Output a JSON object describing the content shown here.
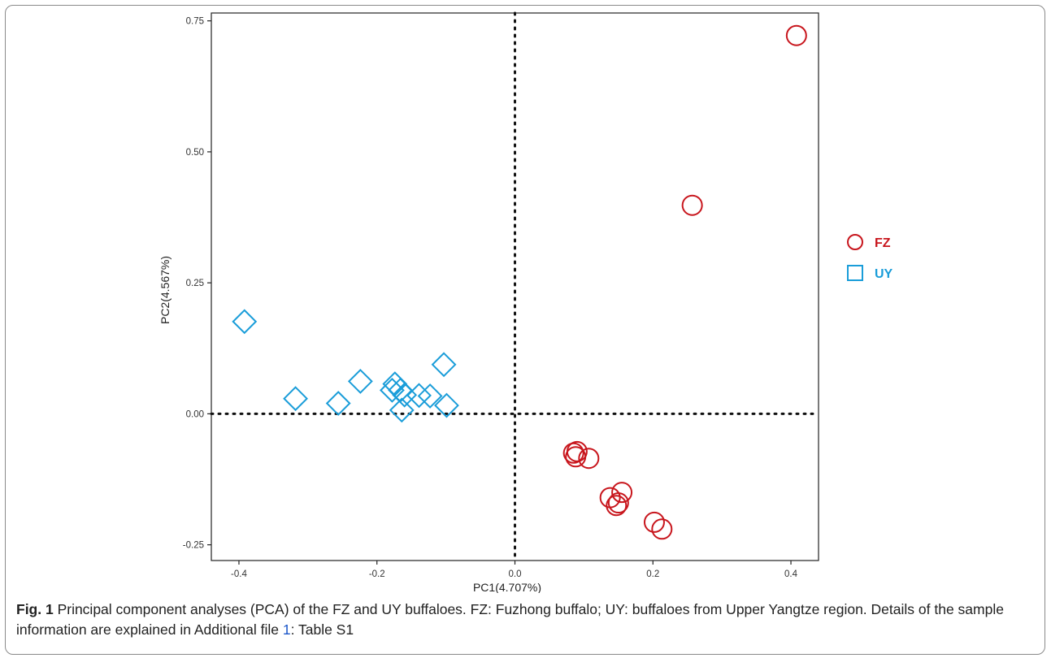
{
  "chart_data": {
    "type": "scatter",
    "xlabel": "PC1(4.707%)",
    "ylabel": "PC2(4.567%)",
    "xlim": [
      -0.44,
      0.44
    ],
    "ylim": [
      -0.28,
      0.765
    ],
    "x_ticks": [
      "-0.4",
      "-0.2",
      "0.0",
      "0.2",
      "0.4"
    ],
    "y_ticks": [
      "-0.25",
      "0.00",
      "0.25",
      "0.50",
      "0.75"
    ],
    "x_tick_values": [
      -0.4,
      -0.2,
      0.0,
      0.2,
      0.4
    ],
    "y_tick_values": [
      -0.25,
      0.0,
      0.25,
      0.5,
      0.75
    ],
    "reference_lines": {
      "x": 0.0,
      "y": 0.0,
      "style": "dotted"
    },
    "grid": false,
    "legend_position": "right",
    "series": [
      {
        "name": "FZ",
        "marker": "circle",
        "color": "#c8161d",
        "points": [
          [
            0.408,
            0.722
          ],
          [
            0.257,
            0.398
          ],
          [
            0.085,
            -0.075
          ],
          [
            0.09,
            -0.072
          ],
          [
            0.088,
            -0.082
          ],
          [
            0.107,
            -0.085
          ],
          [
            0.138,
            -0.16
          ],
          [
            0.155,
            -0.15
          ],
          [
            0.15,
            -0.17
          ],
          [
            0.147,
            -0.175
          ],
          [
            0.202,
            -0.207
          ],
          [
            0.213,
            -0.22
          ]
        ]
      },
      {
        "name": "UY",
        "marker": "diamond",
        "color": "#1a9dd9",
        "legend_marker": "square",
        "points": [
          [
            -0.392,
            0.176
          ],
          [
            -0.318,
            0.029
          ],
          [
            -0.256,
            0.02
          ],
          [
            -0.224,
            0.062
          ],
          [
            -0.178,
            0.045
          ],
          [
            -0.174,
            0.057
          ],
          [
            -0.166,
            0.045
          ],
          [
            -0.16,
            0.036
          ],
          [
            -0.164,
            0.007
          ],
          [
            -0.139,
            0.035
          ],
          [
            -0.123,
            0.034
          ],
          [
            -0.103,
            0.094
          ],
          [
            -0.099,
            0.016
          ]
        ]
      }
    ]
  },
  "caption": {
    "label": "Fig. 1",
    "text_before_link": " Principal component analyses (PCA) of the FZ and UY buffaloes. FZ: Fuzhong buffalo; UY: buffaloes from Upper Yangtze region. Details of the sample information are explained in Additional file ",
    "link_text": "1",
    "text_after_link": ": Table S1"
  }
}
